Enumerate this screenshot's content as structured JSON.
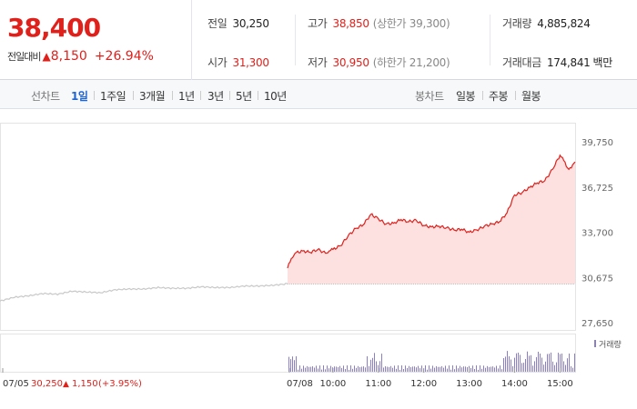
{
  "quote": {
    "price": "38,400",
    "change_label": "전일대비",
    "change_arrow": "▲",
    "change_value": "8,150",
    "change_percent": "+26.94%"
  },
  "stats": {
    "prev_close": {
      "label": "전일",
      "value": "30,250"
    },
    "high": {
      "label": "고가",
      "value": "38,850",
      "sub": "(상한가 39,300)"
    },
    "volume": {
      "label": "거래량",
      "value": "4,885,824"
    },
    "open": {
      "label": "시가",
      "value": "31,300"
    },
    "low": {
      "label": "저가",
      "value": "30,950",
      "sub": "(하한가 21,200)"
    },
    "trade_value": {
      "label": "거래대금",
      "value": "174,841",
      "unit": "백만"
    }
  },
  "toolbar": {
    "line_label": "선차트",
    "line_ranges": [
      "1일",
      "1주일",
      "3개월",
      "1년",
      "3년",
      "5년",
      "10년"
    ],
    "selected_range": "1일",
    "candle_label": "봉차트",
    "candle_ranges": [
      "일봉",
      "주봉",
      "월봉"
    ]
  },
  "colors": {
    "up": "#e0201b",
    "down": "#1e64d2",
    "fill": "#fde0e0",
    "prev_line": "#c8c8c8",
    "volume": "#8a7fc4"
  },
  "chart_data": {
    "type": "line",
    "y_ticks": [
      "39,750",
      "36,725",
      "33,700",
      "30,675",
      "27,650"
    ],
    "y_tick_values": [
      39750,
      36725,
      33700,
      30675,
      27650
    ],
    "ylim": [
      27650,
      39750
    ],
    "reference_price": 30250,
    "x_tick_labels": [
      "07/05",
      "07/08",
      "10:00",
      "11:00",
      "12:00",
      "13:00",
      "14:00",
      "15:00"
    ],
    "prev_day_footer": {
      "date": "07/05",
      "price": "30,250",
      "arrow": "▲",
      "change": "1,150",
      "percent": "(+3.95%)"
    },
    "volume_legend": "거래량",
    "prev_day_series": {
      "t": [
        0,
        0.05,
        0.1,
        0.15,
        0.2,
        0.25,
        0.3,
        0.35,
        0.4,
        0.45,
        0.5,
        0.55,
        0.6,
        0.65,
        0.7,
        0.75,
        0.8,
        0.85,
        0.9,
        0.95,
        1
      ],
      "values": [
        29100,
        29350,
        29450,
        29600,
        29550,
        29750,
        29700,
        29650,
        29850,
        29900,
        29900,
        30000,
        29950,
        29950,
        30050,
        30000,
        30000,
        30100,
        30100,
        30150,
        30250
      ]
    },
    "today_series": {
      "x": [
        "09:00",
        "09:05",
        "09:10",
        "09:20",
        "09:30",
        "09:40",
        "09:50",
        "09:55",
        "10:00",
        "10:10",
        "10:20",
        "10:30",
        "10:40",
        "10:50",
        "11:00",
        "11:10",
        "11:20",
        "11:30",
        "11:40",
        "11:50",
        "12:00",
        "12:10",
        "12:20",
        "12:30",
        "12:40",
        "12:50",
        "13:00",
        "13:10",
        "13:20",
        "13:30",
        "13:40",
        "13:50",
        "14:00",
        "14:10",
        "14:20",
        "14:30",
        "14:40",
        "14:50",
        "15:00",
        "15:05",
        "15:10",
        "15:15",
        "15:20"
      ],
      "values": [
        31300,
        31950,
        32300,
        32450,
        32350,
        32550,
        32300,
        32450,
        32550,
        32800,
        33450,
        33950,
        34200,
        34900,
        34600,
        34250,
        34300,
        34550,
        34400,
        34500,
        34150,
        34050,
        34100,
        34000,
        33850,
        33900,
        33700,
        33850,
        34100,
        34250,
        34400,
        35000,
        36200,
        36350,
        36700,
        37000,
        37150,
        37900,
        38850,
        38500,
        38000,
        38000,
        38400
      ]
    }
  }
}
